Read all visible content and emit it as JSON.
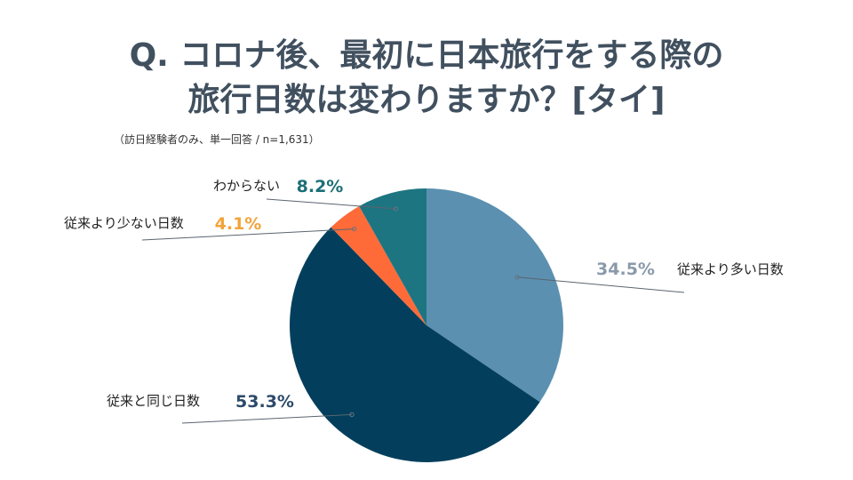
{
  "title": {
    "line1": "Q. コロナ後、最初に日本旅行をする際の",
    "line2": "旅行日数は変わりますか？[タイ]"
  },
  "subtitle": "（訪日経験者のみ、単一回答 / n=1,631）",
  "chart_data": {
    "type": "pie",
    "start": "12 o'clock, clockwise",
    "slices": [
      {
        "label": "従来より多い日数",
        "value": 34.5,
        "value_label": "34.5%",
        "color": "#5b90b0",
        "label_color": "#8a9aaa"
      },
      {
        "label": "従来と同じ日数",
        "value": 53.3,
        "value_label": "53.3%",
        "color": "#033f5c",
        "label_color": "#2d4a6a"
      },
      {
        "label": "従来より少ない日数",
        "value": 4.1,
        "value_label": "4.1%",
        "color": "#ff6b38",
        "label_color": "#f2a33a"
      },
      {
        "label": "わからない",
        "value": 8.2,
        "value_label": "8.2%",
        "color": "#1d7581",
        "label_color": "#1d6f78"
      }
    ]
  }
}
